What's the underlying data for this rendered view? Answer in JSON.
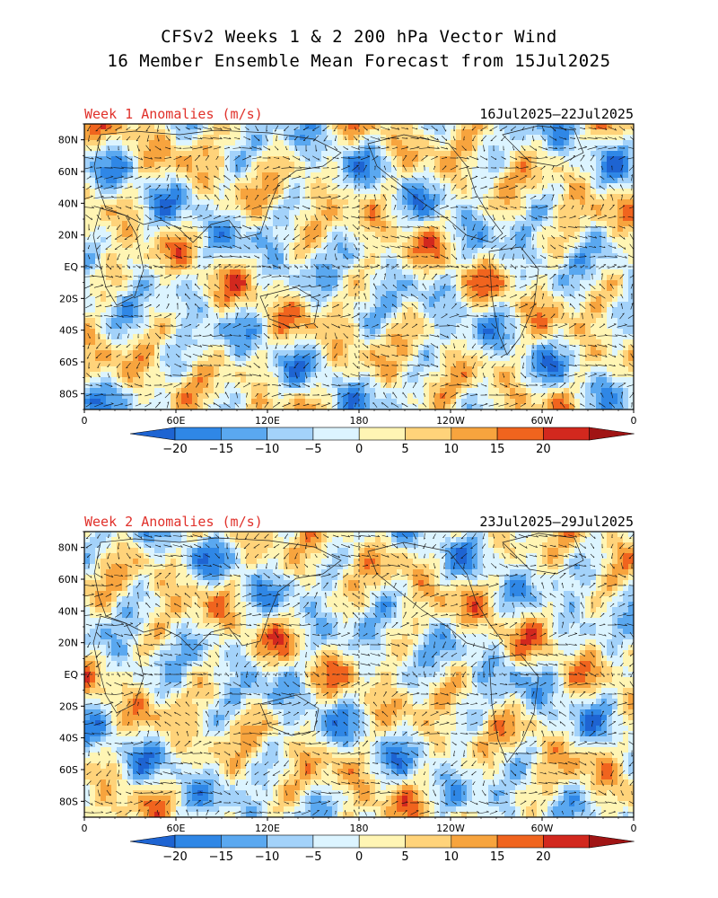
{
  "title": {
    "line1": "CFSv2 Weeks 1 & 2 200 hPa Vector Wind",
    "line2": "16 Member Ensemble Mean Forecast from 15Jul2025"
  },
  "panels": [
    {
      "label": "Week 1 Anomalies (m/s)",
      "dates": "16Jul2025—22Jul2025",
      "lat_ticks": [
        "80N",
        "60N",
        "40N",
        "20N",
        "EQ",
        "20S",
        "40S",
        "60S",
        "80S"
      ],
      "lon_ticks": [
        "0",
        "60E",
        "120E",
        "180",
        "120W",
        "60W",
        "0"
      ]
    },
    {
      "label": "Week 2 Anomalies (m/s)",
      "dates": "23Jul2025—29Jul2025",
      "lat_ticks": [
        "80N",
        "60N",
        "40N",
        "20N",
        "EQ",
        "20S",
        "40S",
        "60S",
        "80S"
      ],
      "lon_ticks": [
        "0",
        "60E",
        "120E",
        "180",
        "120W",
        "60W",
        "0"
      ]
    }
  ],
  "colorbar": {
    "labels": [
      "−20",
      "−15",
      "−10",
      "−5",
      "0",
      "5",
      "10",
      "15",
      "20"
    ],
    "colors": [
      "#1e64d2",
      "#2f87e6",
      "#5aa8f0",
      "#a3d2fa",
      "#dcf4ff",
      "#fff5b4",
      "#ffd37a",
      "#f7a43e",
      "#f0641e",
      "#d2281e",
      "#a01414"
    ]
  },
  "map_colors": {
    "land_outline": "#222222",
    "vector": "#111111",
    "frame": "#000000"
  }
}
